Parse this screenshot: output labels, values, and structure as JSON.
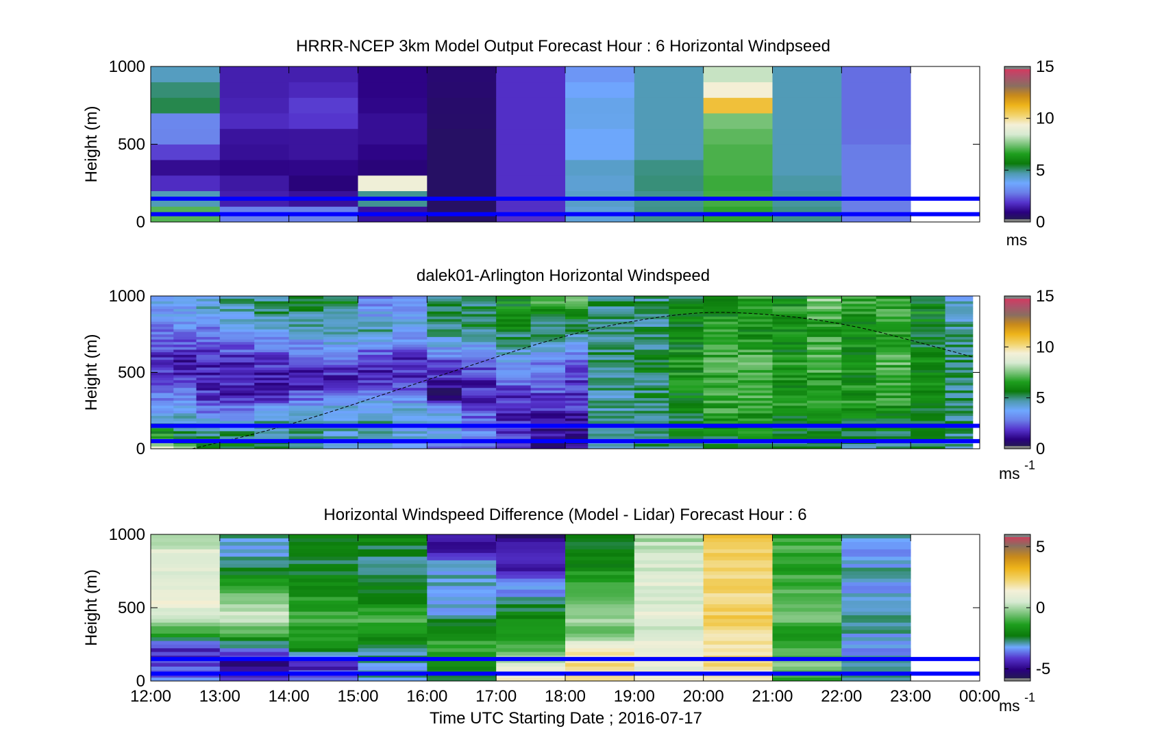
{
  "figure": {
    "xlabel": "Time UTC  Starting Date ; 2016-07-17",
    "x_ticks": [
      "12:00",
      "13:00",
      "14:00",
      "15:00",
      "16:00",
      "17:00",
      "18:00",
      "19:00",
      "20:00",
      "21:00",
      "22:00",
      "23:00",
      "00:00"
    ]
  },
  "colors": {
    "reference_lines": "#0000ff",
    "colormap_speed": [
      "#222244",
      "#2a0080",
      "#5533cc",
      "#6a7fe8",
      "#6fa8ff",
      "#4e9ab0",
      "#0b7a0b",
      "#1e9e1e",
      "#7cc47c",
      "#d7ead2",
      "#f4f0d8",
      "#f2d36a",
      "#eeb41a",
      "#c98a1a",
      "#8a6e60",
      "#b0506a",
      "#e0335a",
      "#808080"
    ],
    "colormap_diff": [
      "#222244",
      "#2a0080",
      "#5533cc",
      "#6fa8ff",
      "#0b7a0b",
      "#1e9e1e",
      "#7cc47c",
      "#d7ead2",
      "#f4f0d8",
      "#f2d36a",
      "#eeb41a",
      "#c98a1a",
      "#8a6e60",
      "#e0335a",
      "#808080"
    ]
  },
  "chart_data": [
    {
      "type": "heatmap",
      "title": "HRRR-NCEP 3km Model Output   Forecast Hour : 6 Horizontal Windpseed",
      "ylabel": "Height (m)",
      "ylim": [
        0,
        1000
      ],
      "y_ticks": [
        "0",
        "500",
        "1000"
      ],
      "xlim": [
        "12:00",
        "00:00"
      ],
      "colorbar": {
        "range": [
          0,
          15
        ],
        "ticks": [
          "0",
          "5",
          "10",
          "15"
        ],
        "units": "ms"
      },
      "reference_lines_m": [
        150,
        50
      ],
      "columns": [
        {
          "start": "12:00",
          "end": "13:00",
          "profile_ms": [
            8.0,
            6.0,
            2.0,
            1.0,
            2.0,
            3.0,
            3.0,
            6.0,
            4.5,
            4.5
          ]
        },
        {
          "start": "13:00",
          "end": "14:00",
          "profile_ms": [
            4.0,
            1.5,
            1.5,
            1.0,
            1.2,
            1.3,
            1.8,
            1.5,
            1.5,
            1.5
          ]
        },
        {
          "start": "14:00",
          "end": "15:00",
          "profile_ms": [
            4.0,
            1.5,
            0.8,
            1.0,
            1.3,
            1.3,
            2.0,
            2.0,
            1.5,
            1.5
          ]
        },
        {
          "start": "15:00",
          "end": "16:00",
          "profile_ms": [
            1.5,
            1.0,
            12.0,
            0.8,
            1.0,
            1.2,
            1.2,
            1.0,
            1.0,
            1.0
          ]
        },
        {
          "start": "16:00",
          "end": "17:00",
          "profile_ms": [
            0.5,
            0.5,
            0.5,
            0.5,
            0.5,
            0.5,
            0.6,
            0.6,
            0.7,
            0.7
          ]
        },
        {
          "start": "17:00",
          "end": "18:00",
          "profile_ms": [
            1.8,
            1.8,
            1.8,
            1.8,
            1.8,
            1.8,
            1.8,
            1.8,
            1.8,
            1.8
          ]
        },
        {
          "start": "18:00",
          "end": "19:00",
          "profile_ms": [
            4.0,
            4.5,
            4.2,
            4.5,
            3.8,
            3.8,
            4.0,
            4.0,
            3.5,
            3.2
          ]
        },
        {
          "start": "19:00",
          "end": "20:00",
          "profile_ms": [
            5.0,
            4.8,
            5.0,
            5.0,
            4.6,
            4.6,
            4.6,
            4.6,
            4.6,
            4.6
          ]
        },
        {
          "start": "20:00",
          "end": "21:00",
          "profile_ms": [
            6.5,
            7.0,
            6.8,
            7.0,
            7.0,
            7.2,
            7.5,
            12.0,
            8.0,
            8.5
          ]
        },
        {
          "start": "21:00",
          "end": "22:00",
          "profile_ms": [
            5.0,
            4.8,
            4.8,
            4.6,
            4.6,
            4.6,
            4.6,
            4.6,
            4.6,
            4.6
          ]
        },
        {
          "start": "22:00",
          "end": "23:00",
          "profile_ms": [
            2.8,
            2.8,
            2.8,
            2.8,
            2.8,
            2.6,
            2.6,
            2.6,
            2.6,
            2.6
          ]
        }
      ]
    },
    {
      "type": "heatmap",
      "title": "dalek01-Arlington  Horizontal Windspeed",
      "ylabel": "Height (m)",
      "ylim": [
        0,
        1000
      ],
      "y_ticks": [
        "0",
        "500",
        "1000"
      ],
      "xlim": [
        "12:00",
        "00:00"
      ],
      "colorbar": {
        "range": [
          0,
          15
        ],
        "ticks": [
          "0",
          "5",
          "10",
          "15"
        ],
        "units": "ms",
        "units_exp": "-1"
      },
      "reference_lines_m": [
        150,
        50
      ],
      "overlay": "dashed arc (boundary-layer height estimate) from ~0 m at 12:35 up to ~900 m near 20:00, down to ~600 m at 23:55",
      "overlay_points": [
        [
          12.6,
          0
        ],
        [
          14.0,
          150
        ],
        [
          16.0,
          450
        ],
        [
          18.0,
          750
        ],
        [
          19.5,
          880
        ],
        [
          20.5,
          900
        ],
        [
          22.0,
          830
        ],
        [
          23.5,
          650
        ],
        [
          23.9,
          600
        ]
      ],
      "time_blocks": [
        {
          "start": 12.0,
          "end": 12.33,
          "profile_ms": [
            9.0,
            6.0,
            4.0,
            3.0,
            2.0,
            1.5,
            2.5,
            3.0,
            3.5,
            4.0
          ]
        },
        {
          "start": 12.33,
          "end": 12.66,
          "profile_ms": [
            8.0,
            5.0,
            4.0,
            3.0,
            2.0,
            1.5,
            2.0,
            3.0,
            3.5,
            4.0
          ]
        },
        {
          "start": 12.66,
          "end": 13.0,
          "profile_ms": [
            6.0,
            5.0,
            3.0,
            2.0,
            1.5,
            1.5,
            2.0,
            3.0,
            4.0,
            4.5
          ]
        },
        {
          "start": 13.0,
          "end": 13.5,
          "profile_ms": [
            5.5,
            5.0,
            3.0,
            1.8,
            1.5,
            1.5,
            2.5,
            3.5,
            4.5,
            5.0
          ]
        },
        {
          "start": 13.5,
          "end": 14.0,
          "profile_ms": [
            5.0,
            5.0,
            4.0,
            2.0,
            1.5,
            1.8,
            2.5,
            4.0,
            5.0,
            5.0
          ]
        },
        {
          "start": 14.0,
          "end": 14.5,
          "profile_ms": [
            4.5,
            5.0,
            4.5,
            2.5,
            1.5,
            2.0,
            3.0,
            4.5,
            5.0,
            5.5
          ]
        },
        {
          "start": 14.5,
          "end": 15.0,
          "profile_ms": [
            4.0,
            4.5,
            4.5,
            3.5,
            1.5,
            2.0,
            3.5,
            4.5,
            5.0,
            5.5
          ]
        },
        {
          "start": 15.0,
          "end": 15.5,
          "profile_ms": [
            4.0,
            4.5,
            4.5,
            3.5,
            1.8,
            1.5,
            3.0,
            4.5,
            3.5,
            3.0
          ]
        },
        {
          "start": 15.5,
          "end": 16.0,
          "profile_ms": [
            3.5,
            4.0,
            4.5,
            3.0,
            2.0,
            1.5,
            2.5,
            4.0,
            3.5,
            3.0
          ]
        },
        {
          "start": 16.0,
          "end": 16.5,
          "profile_ms": [
            3.0,
            4.0,
            4.5,
            1.0,
            1.5,
            2.0,
            3.5,
            5.0,
            5.0,
            5.0
          ]
        },
        {
          "start": 16.5,
          "end": 17.0,
          "profile_ms": [
            2.0,
            3.0,
            2.5,
            1.5,
            1.8,
            2.5,
            3.5,
            5.0,
            5.5,
            5.0
          ]
        },
        {
          "start": 17.0,
          "end": 17.5,
          "profile_ms": [
            1.5,
            2.0,
            1.8,
            1.8,
            2.5,
            3.5,
            4.5,
            5.5,
            6.0,
            6.0
          ]
        },
        {
          "start": 17.5,
          "end": 18.0,
          "profile_ms": [
            1.0,
            1.2,
            1.5,
            2.0,
            2.5,
            3.0,
            4.0,
            5.0,
            6.0,
            7.0
          ]
        },
        {
          "start": 18.0,
          "end": 18.33,
          "profile_ms": [
            1.0,
            0.8,
            1.5,
            2.0,
            2.0,
            2.5,
            3.5,
            5.0,
            6.0,
            7.5
          ]
        },
        {
          "start": 18.33,
          "end": 19.0,
          "profile_ms": [
            4.5,
            4.5,
            4.5,
            4.5,
            5.0,
            5.0,
            5.0,
            4.5,
            5.0,
            5.0
          ]
        },
        {
          "start": 19.0,
          "end": 19.5,
          "profile_ms": [
            4.8,
            5.0,
            5.0,
            5.2,
            5.0,
            5.5,
            5.0,
            5.0,
            4.8,
            5.0
          ]
        },
        {
          "start": 19.5,
          "end": 20.0,
          "profile_ms": [
            5.0,
            5.5,
            5.5,
            6.0,
            6.0,
            6.5,
            6.0,
            5.5,
            6.0,
            5.5
          ]
        },
        {
          "start": 20.0,
          "end": 20.5,
          "profile_ms": [
            5.0,
            6.0,
            6.5,
            7.0,
            6.5,
            7.0,
            6.5,
            6.5,
            6.0,
            6.0
          ]
        },
        {
          "start": 20.5,
          "end": 21.0,
          "profile_ms": [
            5.0,
            6.0,
            6.5,
            7.0,
            7.0,
            7.0,
            6.5,
            6.0,
            6.5,
            6.5
          ]
        },
        {
          "start": 21.0,
          "end": 21.5,
          "profile_ms": [
            5.0,
            5.5,
            6.0,
            6.5,
            6.0,
            6.5,
            6.0,
            6.0,
            6.5,
            6.0
          ]
        },
        {
          "start": 21.5,
          "end": 22.0,
          "profile_ms": [
            5.0,
            5.5,
            6.0,
            6.5,
            6.5,
            7.0,
            7.0,
            6.5,
            7.0,
            7.5
          ]
        },
        {
          "start": 22.0,
          "end": 22.5,
          "profile_ms": [
            5.0,
            5.5,
            6.0,
            6.5,
            6.0,
            6.5,
            6.0,
            6.0,
            6.5,
            6.5
          ]
        },
        {
          "start": 22.5,
          "end": 23.0,
          "profile_ms": [
            5.0,
            5.5,
            6.0,
            6.5,
            6.5,
            7.0,
            6.5,
            6.5,
            7.0,
            6.5
          ]
        },
        {
          "start": 23.0,
          "end": 23.5,
          "profile_ms": [
            5.0,
            5.5,
            5.5,
            6.0,
            6.0,
            6.0,
            5.5,
            5.5,
            6.0,
            5.5
          ]
        },
        {
          "start": 23.5,
          "end": 23.9,
          "profile_ms": [
            4.5,
            5.0,
            5.0,
            5.0,
            5.0,
            5.0,
            5.0,
            4.8,
            4.5,
            4.0
          ]
        }
      ]
    },
    {
      "type": "heatmap",
      "title": "Horizontal Windspeed Difference (Model - Lidar) Forecast Hour : 6",
      "ylabel": "Height (m)",
      "ylim": [
        0,
        1000
      ],
      "y_ticks": [
        "0",
        "500",
        "1000"
      ],
      "xlim": [
        "12:00",
        "00:00"
      ],
      "x_ticks": [
        "12:00",
        "13:00",
        "14:00",
        "15:00",
        "16:00",
        "17:00",
        "18:00",
        "19:00",
        "20:00",
        "21:00",
        "22:00",
        "23:00",
        "00:00"
      ],
      "xlabel": "Time UTC  Starting Date ; 2016-07-17",
      "colorbar": {
        "range": [
          -6,
          6
        ],
        "ticks": [
          "-5",
          "0",
          "5"
        ],
        "units": "ms",
        "units_exp": "-1"
      },
      "reference_lines_m": [
        150,
        50
      ],
      "columns": [
        {
          "start": "12:00",
          "end": "13:00",
          "profile_ms": [
            -3.5,
            -4.0,
            -4.5,
            -1.0,
            0.5,
            1.2,
            0.8,
            0.5,
            0.8,
            -0.3
          ]
        },
        {
          "start": "13:00",
          "end": "14:00",
          "profile_ms": [
            -4.0,
            -5.0,
            -3.5,
            -1.0,
            0.5,
            -0.5,
            -1.5,
            -2.5,
            -3.0,
            -3.0
          ]
        },
        {
          "start": "14:00",
          "end": "15:00",
          "profile_ms": [
            -3.5,
            -4.5,
            -2.0,
            -1.5,
            -1.0,
            -1.5,
            -2.0,
            -2.5,
            -2.5,
            -2.0
          ]
        },
        {
          "start": "15:00",
          "end": "16:00",
          "profile_ms": [
            -3.0,
            -3.0,
            -2.5,
            -1.5,
            -1.0,
            -2.0,
            -2.5,
            -3.0,
            -2.5,
            -2.0
          ]
        },
        {
          "start": "16:00",
          "end": "17:00",
          "profile_ms": [
            -3.0,
            -1.5,
            -1.0,
            -2.0,
            -3.0,
            -3.0,
            -3.0,
            -3.0,
            -4.5,
            -5.0
          ]
        },
        {
          "start": "17:00",
          "end": "18:00",
          "profile_ms": [
            1.5,
            0.5,
            -1.0,
            -1.5,
            -2.0,
            -3.0,
            -3.5,
            -4.5,
            -4.5,
            -5.5
          ]
        },
        {
          "start": "18:00",
          "end": "19:00",
          "profile_ms": [
            2.0,
            2.0,
            1.5,
            -0.5,
            0.0,
            -0.5,
            -1.0,
            -2.0,
            -2.5,
            null
          ]
        },
        {
          "start": "19:00",
          "end": "20:00",
          "profile_ms": [
            1.5,
            1.0,
            1.0,
            0.5,
            1.0,
            0.5,
            0.8,
            0.5,
            0.2,
            0.0
          ]
        },
        {
          "start": "20:00",
          "end": "21:00",
          "profile_ms": [
            1.5,
            2.0,
            2.0,
            2.0,
            2.5,
            2.0,
            2.5,
            2.0,
            2.5,
            3.0
          ]
        },
        {
          "start": "21:00",
          "end": "22:00",
          "profile_ms": [
            -1.0,
            -0.5,
            -1.0,
            -1.5,
            -0.5,
            -0.5,
            -1.0,
            -1.5,
            -1.0,
            -1.5
          ]
        },
        {
          "start": "22:00",
          "end": "23:00",
          "profile_ms": [
            -3.0,
            -3.0,
            -3.5,
            -3.0,
            -2.5,
            -3.5,
            -3.0,
            -3.0,
            -3.5,
            -3.0
          ]
        }
      ]
    }
  ]
}
